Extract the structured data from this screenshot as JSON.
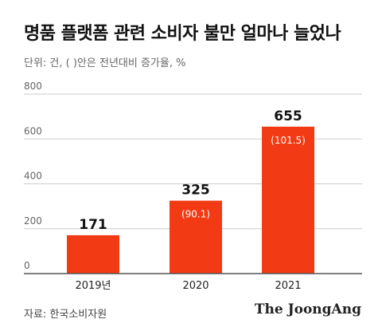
{
  "title": "명품 플랫폼 관련 소비자 불만 얼마나 늘었나",
  "subtitle": "단위: 건, ( )안은 전년대비 증가율, %",
  "source": "자료: 한국소비자원",
  "brand": "The JoongAng",
  "colors": {
    "bar": "#f23a14",
    "grid": "#cccccc",
    "axis": "#555555"
  },
  "chart_data": {
    "type": "bar",
    "categories": [
      "2019년",
      "2020",
      "2021"
    ],
    "values": [
      171,
      325,
      655
    ],
    "value_labels": [
      "171",
      "325",
      "655"
    ],
    "growth_labels": [
      "",
      "(90.1)",
      "(101.5)"
    ],
    "yticks": [
      "0",
      "200",
      "400",
      "600",
      "800"
    ],
    "ylim": [
      0,
      800
    ],
    "grid": true
  }
}
